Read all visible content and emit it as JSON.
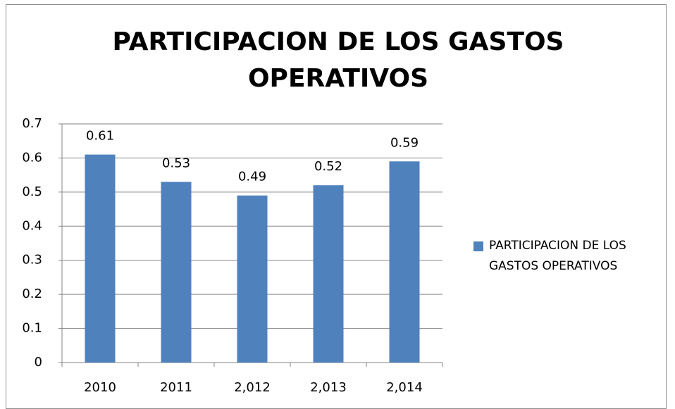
{
  "chart_data": {
    "type": "bar",
    "title": "PARTICIPACION DE LOS GASTOS OPERATIVOS",
    "categories": [
      "2010",
      "2011",
      "2,012",
      "2,013",
      "2,014"
    ],
    "series": [
      {
        "name": "PARTICIPACION DE LOS GASTOS OPERATIVOS",
        "color": "#4f81bd",
        "values": [
          0.61,
          0.53,
          0.49,
          0.52,
          0.59
        ]
      }
    ],
    "ylim": [
      0,
      0.7
    ],
    "yticks": [
      0,
      0.1,
      0.2,
      0.3,
      0.4,
      0.5,
      0.6,
      0.7
    ],
    "grid": true,
    "legend": "right"
  }
}
